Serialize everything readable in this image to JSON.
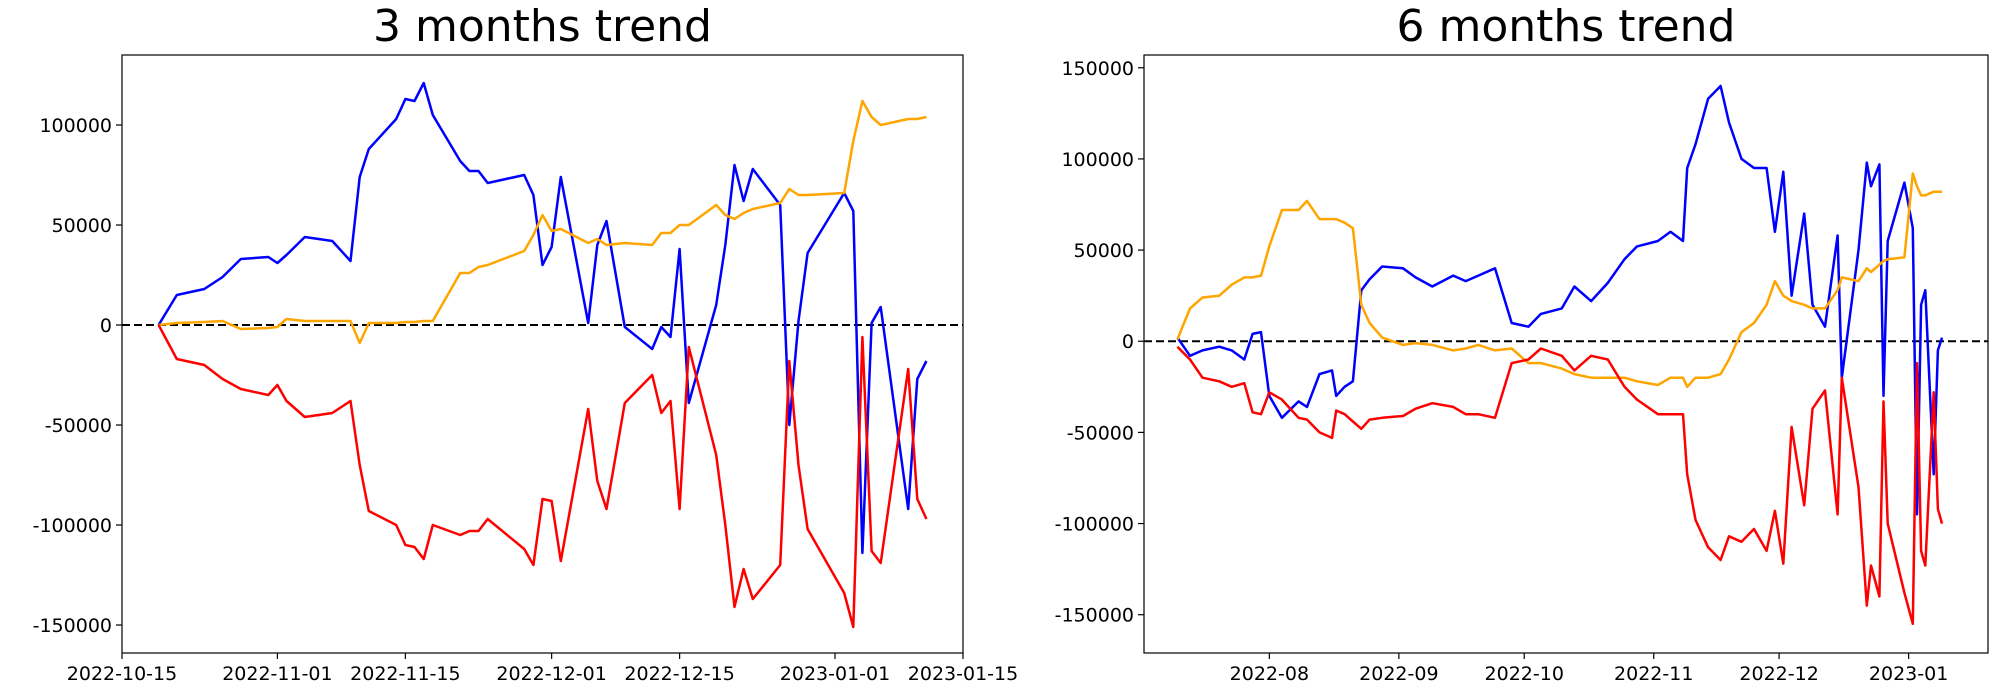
{
  "chart_data": [
    {
      "type": "line",
      "title": "3 months trend",
      "x": [
        "2022-10-19",
        "2022-10-21",
        "2022-10-24",
        "2022-10-26",
        "2022-10-28",
        "2022-10-31",
        "2022-11-01",
        "2022-11-02",
        "2022-11-04",
        "2022-11-07",
        "2022-11-09",
        "2022-11-10",
        "2022-11-11",
        "2022-11-14",
        "2022-11-15",
        "2022-11-16",
        "2022-11-17",
        "2022-11-18",
        "2022-11-21",
        "2022-11-22",
        "2022-11-23",
        "2022-11-24",
        "2022-11-28",
        "2022-11-29",
        "2022-11-30",
        "2022-12-01",
        "2022-12-02",
        "2022-12-05",
        "2022-12-06",
        "2022-12-07",
        "2022-12-09",
        "2022-12-12",
        "2022-12-13",
        "2022-12-14",
        "2022-12-15",
        "2022-12-16",
        "2022-12-19",
        "2022-12-20",
        "2022-12-21",
        "2022-12-22",
        "2022-12-23",
        "2022-12-26",
        "2022-12-27",
        "2022-12-28",
        "2022-12-29",
        "2023-01-02",
        "2023-01-03",
        "2023-01-04",
        "2023-01-05",
        "2023-01-06",
        "2023-01-09",
        "2023-01-10",
        "2023-01-11"
      ],
      "series": [
        {
          "color": "#0000ff",
          "values": [
            0,
            15000,
            18000,
            24000,
            33000,
            34000,
            31000,
            35000,
            44000,
            42000,
            32000,
            74000,
            88000,
            103000,
            113000,
            112000,
            121000,
            105000,
            82000,
            77000,
            77000,
            71000,
            75000,
            65000,
            30000,
            39000,
            74000,
            1000,
            40000,
            52000,
            -1000,
            -12000,
            -1000,
            -6000,
            38000,
            -39000,
            10000,
            40000,
            80000,
            62000,
            78000,
            60000,
            -50000,
            2000,
            36000,
            66000,
            57000,
            -114000,
            1000,
            9000,
            -92000,
            -27000,
            -18000
          ]
        },
        {
          "color": "#ffa500",
          "values": [
            0,
            1000,
            1500,
            2000,
            -2000,
            -1500,
            -1000,
            3000,
            2000,
            2000,
            2000,
            -9000,
            1000,
            1000,
            1500,
            1500,
            2000,
            2000,
            26000,
            26000,
            29000,
            30000,
            37000,
            45000,
            55000,
            47000,
            48000,
            41000,
            43000,
            40000,
            41000,
            40000,
            46000,
            46000,
            50000,
            50000,
            60000,
            55000,
            53000,
            56000,
            58000,
            61000,
            68000,
            65000,
            65000,
            66000,
            92000,
            112000,
            104000,
            100000,
            103000,
            103000,
            104000
          ]
        },
        {
          "color": "#ff0000",
          "values": [
            0,
            -17000,
            -20000,
            -27000,
            -32000,
            -35000,
            -30000,
            -38000,
            -46000,
            -44000,
            -38000,
            -70000,
            -93000,
            -100000,
            -110000,
            -111000,
            -117000,
            -100000,
            -105000,
            -103000,
            -103000,
            -97000,
            -112000,
            -120000,
            -87000,
            -88000,
            -118000,
            -42000,
            -78000,
            -92000,
            -39000,
            -25000,
            -44000,
            -38000,
            -92000,
            -11000,
            -65000,
            -100000,
            -141000,
            -122000,
            -137000,
            -120000,
            -18000,
            -70000,
            -102000,
            -134000,
            -151000,
            -6000,
            -113000,
            -119000,
            -22000,
            -87000,
            -97000
          ]
        }
      ],
      "xlim": [
        "2022-10-15",
        "2023-01-15"
      ],
      "xticks": [
        "2022-10-15",
        "2022-11-01",
        "2022-11-15",
        "2022-12-01",
        "2022-12-15",
        "2023-01-01",
        "2023-01-15"
      ],
      "ylim": [
        -164000,
        135000
      ],
      "yticks": [
        -150000,
        -100000,
        -50000,
        0,
        50000,
        100000
      ],
      "hline": 0
    },
    {
      "type": "line",
      "title": "6 months trend",
      "x": [
        "2022-07-10",
        "2022-07-13",
        "2022-07-16",
        "2022-07-20",
        "2022-07-23",
        "2022-07-26",
        "2022-07-28",
        "2022-07-30",
        "2022-08-01",
        "2022-08-04",
        "2022-08-08",
        "2022-08-10",
        "2022-08-13",
        "2022-08-16",
        "2022-08-17",
        "2022-08-19",
        "2022-08-21",
        "2022-08-23",
        "2022-08-25",
        "2022-08-28",
        "2022-09-02",
        "2022-09-05",
        "2022-09-09",
        "2022-09-14",
        "2022-09-17",
        "2022-09-20",
        "2022-09-24",
        "2022-09-28",
        "2022-10-02",
        "2022-10-05",
        "2022-10-10",
        "2022-10-13",
        "2022-10-17",
        "2022-10-21",
        "2022-10-25",
        "2022-10-28",
        "2022-11-02",
        "2022-11-05",
        "2022-11-08",
        "2022-11-09",
        "2022-11-11",
        "2022-11-14",
        "2022-11-17",
        "2022-11-19",
        "2022-11-22",
        "2022-11-25",
        "2022-11-28",
        "2022-11-30",
        "2022-12-02",
        "2022-12-04",
        "2022-12-07",
        "2022-12-09",
        "2022-12-12",
        "2022-12-15",
        "2022-12-16",
        "2022-12-20",
        "2022-12-22",
        "2022-12-23",
        "2022-12-25",
        "2022-12-26",
        "2022-12-27",
        "2022-12-31",
        "2023-01-02",
        "2023-01-03",
        "2023-01-04",
        "2023-01-05",
        "2023-01-07",
        "2023-01-08",
        "2023-01-09"
      ],
      "series": [
        {
          "color": "#0000ff",
          "values": [
            2000,
            -8000,
            -5000,
            -3000,
            -5000,
            -10000,
            4000,
            5000,
            -30000,
            -42000,
            -33000,
            -36000,
            -18000,
            -16000,
            -30000,
            -25000,
            -22000,
            28000,
            34000,
            41000,
            40000,
            35000,
            30000,
            36000,
            33000,
            36000,
            40000,
            10000,
            8000,
            15000,
            18000,
            30000,
            22000,
            32000,
            45000,
            52000,
            55000,
            60000,
            55000,
            95000,
            108000,
            133000,
            140000,
            120000,
            100000,
            95000,
            95000,
            60000,
            93000,
            25000,
            70000,
            20000,
            8000,
            58000,
            -20000,
            50000,
            98000,
            85000,
            97000,
            -30000,
            55000,
            87000,
            62000,
            -95000,
            20000,
            28000,
            -73000,
            -5000,
            2000
          ]
        },
        {
          "color": "#ffa500",
          "values": [
            1000,
            18000,
            24000,
            25000,
            31000,
            35000,
            35000,
            36000,
            52000,
            72000,
            72000,
            77000,
            67000,
            67000,
            67000,
            65000,
            62000,
            20000,
            10000,
            2000,
            -2000,
            -1000,
            -2000,
            -5000,
            -4000,
            -2000,
            -5000,
            -4000,
            -12000,
            -12000,
            -15000,
            -18000,
            -20000,
            -20000,
            -20000,
            -22000,
            -24000,
            -20000,
            -20000,
            -25000,
            -20000,
            -20000,
            -18000,
            -10000,
            5000,
            10000,
            20000,
            33000,
            25000,
            22000,
            20000,
            18000,
            18000,
            28000,
            35000,
            33000,
            40000,
            38000,
            42000,
            44000,
            45000,
            46000,
            92000,
            85000,
            80000,
            80000,
            82000,
            82000,
            82000
          ]
        },
        {
          "color": "#ff0000",
          "values": [
            -3000,
            -10000,
            -20000,
            -22000,
            -25000,
            -23000,
            -39000,
            -40000,
            -28000,
            -32000,
            -42000,
            -43000,
            -50000,
            -53000,
            -38000,
            -40000,
            -44000,
            -48000,
            -43000,
            -42000,
            -41000,
            -37000,
            -34000,
            -36000,
            -40000,
            -40000,
            -42000,
            -12000,
            -10000,
            -4000,
            -8000,
            -16000,
            -8000,
            -10000,
            -25000,
            -32000,
            -40000,
            -40000,
            -40000,
            -73000,
            -98000,
            -113000,
            -120000,
            -107000,
            -110000,
            -103000,
            -115000,
            -93000,
            -122000,
            -47000,
            -90000,
            -37000,
            -27000,
            -95000,
            -20000,
            -80000,
            -145000,
            -123000,
            -140000,
            -33000,
            -100000,
            -138000,
            -155000,
            -12000,
            -115000,
            -123000,
            -28000,
            -92000,
            -100000
          ]
        }
      ],
      "xlim": [
        "2022-07-02",
        "2023-01-20"
      ],
      "xticks": [
        "2022-08",
        "2022-09",
        "2022-10",
        "2022-11",
        "2022-12",
        "2023-01"
      ],
      "ylim": [
        -171000,
        157000
      ],
      "yticks": [
        -150000,
        -100000,
        -50000,
        0,
        50000,
        100000,
        150000
      ],
      "hline": 0
    }
  ]
}
